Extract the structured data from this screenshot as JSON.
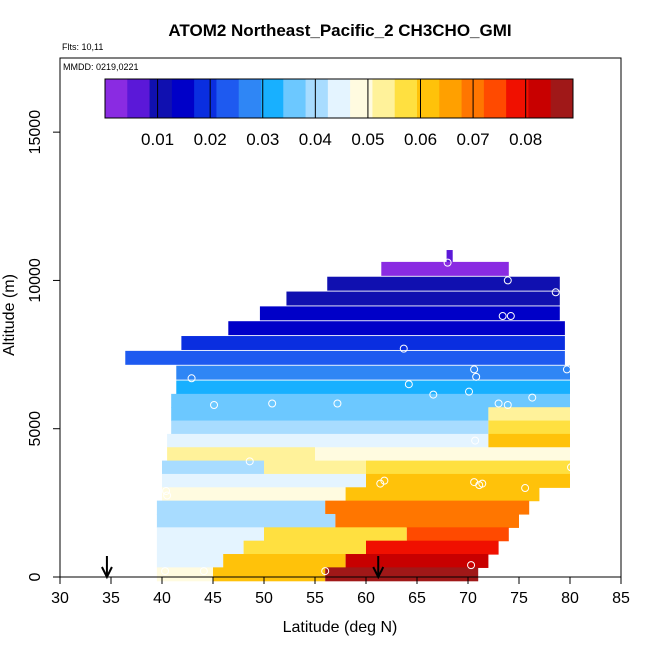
{
  "chart_data": {
    "type": "heatmap",
    "title": "ATOM2 Northeast_Pacific_2 CH3CHO_GMI",
    "info_lines": [
      "Flts: 10,11",
      "MMDD: 0219,0221"
    ],
    "xlabel": "Latitude (deg N)",
    "ylabel": "Altitude (m)",
    "xlim": [
      30,
      85
    ],
    "ylim": [
      0,
      17500
    ],
    "x_ticks": [
      "30",
      "35",
      "40",
      "45",
      "50",
      "55",
      "60",
      "65",
      "70",
      "75",
      "80",
      "85"
    ],
    "y_ticks": [
      "0",
      "5000",
      "10000",
      "15000"
    ],
    "colorbar": {
      "min": 0.0,
      "max": 0.089,
      "tick_labels": [
        "0.01",
        "0.02",
        "0.03",
        "0.04",
        "0.05",
        "0.06",
        "0.07",
        "0.08"
      ],
      "colors": [
        "#8a2be2",
        "#5b18d8",
        "#1010b0",
        "#0000c8",
        "#0a2ee0",
        "#1e5af0",
        "#2f86f5",
        "#18b0ff",
        "#6cc8ff",
        "#a8dcff",
        "#e4f4ff",
        "#fffbe0",
        "#fff29a",
        "#ffe040",
        "#ffc20a",
        "#ffa000",
        "#ff7600",
        "#ff4a00",
        "#f01000",
        "#c80000",
        "#a01818"
      ]
    },
    "rows": [
      {
        "alt": 10800,
        "cells": [
          [
            67.9,
            68.5,
            0.0045
          ]
        ]
      },
      {
        "alt": 10400,
        "cells": [
          [
            61.5,
            74,
            0.0035
          ]
        ]
      },
      {
        "alt": 9900,
        "cells": [
          [
            56.2,
            79,
            0.009
          ]
        ]
      },
      {
        "alt": 9400,
        "cells": [
          [
            52.2,
            79,
            0.012
          ]
        ]
      },
      {
        "alt": 8900,
        "cells": [
          [
            49.6,
            79,
            0.0135
          ]
        ]
      },
      {
        "alt": 8400,
        "cells": [
          [
            46.5,
            79.5,
            0.016
          ]
        ]
      },
      {
        "alt": 7900,
        "cells": [
          [
            41.9,
            79.5,
            0.019
          ]
        ]
      },
      {
        "alt": 7400,
        "cells": [
          [
            36.4,
            79.5,
            0.022
          ]
        ]
      },
      {
        "alt": 6900,
        "cells": [
          [
            41.4,
            80,
            0.026
          ]
        ]
      },
      {
        "alt": 6400,
        "cells": [
          [
            41.4,
            80,
            0.03
          ]
        ]
      },
      {
        "alt": 5950,
        "cells": [
          [
            40.9,
            80,
            0.034
          ]
        ]
      },
      {
        "alt": 5500,
        "cells": [
          [
            40.9,
            72,
            0.037
          ],
          [
            72,
            80,
            0.052
          ]
        ]
      },
      {
        "alt": 5050,
        "cells": [
          [
            40.9,
            72,
            0.041
          ],
          [
            72,
            80,
            0.057
          ]
        ]
      },
      {
        "alt": 4600,
        "cells": [
          [
            40.5,
            72,
            0.044
          ],
          [
            72,
            80,
            0.062
          ]
        ]
      },
      {
        "alt": 4150,
        "cells": [
          [
            40.5,
            55,
            0.052
          ],
          [
            55,
            80,
            0.048
          ]
        ]
      },
      {
        "alt": 3700,
        "cells": [
          [
            40.0,
            50,
            0.04
          ],
          [
            50,
            60,
            0.052
          ],
          [
            60,
            80,
            0.058
          ]
        ]
      },
      {
        "alt": 3250,
        "cells": [
          [
            40.0,
            60,
            0.046
          ],
          [
            60,
            80,
            0.063
          ]
        ]
      },
      {
        "alt": 2800,
        "cells": [
          [
            40.0,
            58,
            0.05
          ],
          [
            58,
            77,
            0.062
          ]
        ]
      },
      {
        "alt": 2350,
        "cells": [
          [
            39.5,
            56,
            0.042
          ],
          [
            56,
            76,
            0.068
          ]
        ]
      },
      {
        "alt": 1900,
        "cells": [
          [
            39.5,
            57,
            0.04
          ],
          [
            57,
            75,
            0.07
          ]
        ]
      },
      {
        "alt": 1450,
        "cells": [
          [
            39.5,
            50,
            0.043
          ],
          [
            50,
            64,
            0.056
          ],
          [
            64,
            74,
            0.074
          ]
        ]
      },
      {
        "alt": 1000,
        "cells": [
          [
            39.5,
            48,
            0.045
          ],
          [
            48,
            60,
            0.058
          ],
          [
            60,
            73,
            0.078
          ]
        ]
      },
      {
        "alt": 550,
        "cells": [
          [
            39.5,
            46,
            0.046
          ],
          [
            46,
            58,
            0.06
          ],
          [
            58,
            72,
            0.083
          ]
        ]
      },
      {
        "alt": 100,
        "cells": [
          [
            39.5,
            45,
            0.048
          ],
          [
            45,
            56,
            0.061
          ],
          [
            56,
            71,
            0.086
          ]
        ]
      }
    ],
    "observation_points": [
      [
        68.0,
        10600
      ],
      [
        73.9,
        10000
      ],
      [
        78.6,
        9600
      ],
      [
        73.4,
        8800
      ],
      [
        74.2,
        8800
      ],
      [
        63.7,
        7700
      ],
      [
        70.6,
        7000
      ],
      [
        70.8,
        6750
      ],
      [
        64.2,
        6500
      ],
      [
        66.6,
        6150
      ],
      [
        70.1,
        6250
      ],
      [
        76.3,
        6050
      ],
      [
        79.7,
        7000
      ],
      [
        42.9,
        6700
      ],
      [
        45.1,
        5800
      ],
      [
        50.8,
        5850
      ],
      [
        57.2,
        5850
      ],
      [
        73.0,
        5850
      ],
      [
        73.9,
        5800
      ],
      [
        70.7,
        4600
      ],
      [
        48.6,
        3900
      ],
      [
        61.4,
        3150
      ],
      [
        61.8,
        3250
      ],
      [
        70.6,
        3200
      ],
      [
        71.1,
        3100
      ],
      [
        71.4,
        3150
      ],
      [
        75.6,
        3000
      ],
      [
        80.1,
        3700
      ],
      [
        40.4,
        2900
      ],
      [
        40.5,
        2750
      ],
      [
        40.3,
        200
      ],
      [
        44.1,
        200
      ],
      [
        56.0,
        200
      ],
      [
        70.3,
        400
      ],
      [
        75.0,
        500
      ]
    ],
    "arrows": [
      34.6,
      61.2
    ]
  }
}
